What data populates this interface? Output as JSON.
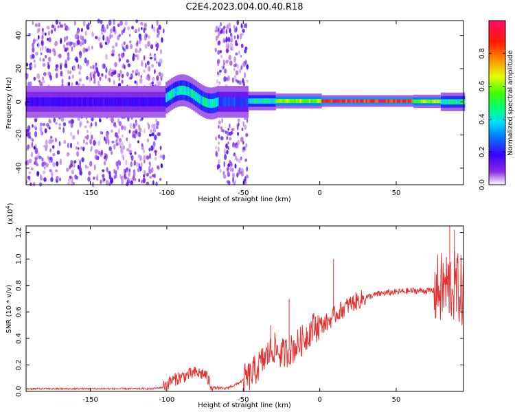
{
  "title": "C2E4.2023.004.00.40.R18",
  "chart_data": [
    {
      "type": "heatmap",
      "name": "spectrogram",
      "xlabel": "Height of straight line (km)",
      "ylabel": "Frequency (Hz)",
      "xlim": [
        -192,
        94
      ],
      "ylim": [
        -50,
        49
      ],
      "xticks": [
        -150,
        -100,
        -50,
        0,
        50
      ],
      "yticks": [
        -40,
        -20,
        0,
        20,
        40
      ],
      "colorbar": {
        "label": "Normalized spectral amplitude",
        "range": [
          0,
          1
        ],
        "ticks": [
          "0.0",
          "0.2",
          "0.4",
          "0.6",
          "0.8"
        ],
        "tick_values": [
          0,
          0.2,
          0.4,
          0.6,
          0.8
        ]
      },
      "regions": [
        {
          "x": [
            -192,
            -102
          ],
          "description": "broadband noise"
        },
        {
          "x": [
            -68,
            -47
          ],
          "description": "broadband noise"
        },
        {
          "x": [
            -100,
            -67
          ],
          "description": "signal band near 5 Hz, amplitude ~0.45"
        },
        {
          "x": [
            -30,
            90
          ],
          "description": "narrow line near 0 Hz, amplitude up to ~0.95"
        }
      ]
    },
    {
      "type": "line",
      "name": "snr",
      "xlabel": "Height of straight line (km)",
      "ylabel": "SNR (10 * v/v)",
      "scale_label": "(x10",
      "scale_exp": "4",
      "scale_close": ")",
      "xlim": [
        -192,
        94
      ],
      "ylim": [
        0,
        1.25
      ],
      "xticks": [
        -150,
        -100,
        -50,
        0,
        50
      ],
      "yticks": [
        "0.0",
        "0.2",
        "0.4",
        "0.6",
        "0.8",
        "1.0",
        "1.2"
      ],
      "ytick_values": [
        0,
        0.2,
        0.4,
        0.6,
        0.8,
        1.0,
        1.2
      ],
      "color": "#e53030",
      "x": [
        -190,
        -150,
        -110,
        -103,
        -97,
        -90,
        -82,
        -75,
        -70,
        -62,
        -55,
        -45,
        -38,
        -30,
        -25,
        -18,
        -10,
        -5,
        0,
        5,
        10,
        20,
        30,
        40,
        50,
        60,
        70,
        76,
        80,
        85,
        90,
        93
      ],
      "y": [
        0.02,
        0.02,
        0.02,
        0.03,
        0.08,
        0.11,
        0.14,
        0.13,
        0.03,
        0.02,
        0.05,
        0.12,
        0.22,
        0.33,
        0.28,
        0.32,
        0.4,
        0.48,
        0.5,
        0.52,
        0.58,
        0.66,
        0.71,
        0.74,
        0.75,
        0.76,
        0.76,
        0.76,
        0.78,
        0.8,
        0.78,
        0.75
      ],
      "spikes": [
        {
          "x": -32,
          "y": 0.5
        },
        {
          "x": -20,
          "y": 0.7
        },
        {
          "x": 9,
          "y": 1.0
        },
        {
          "x": 85,
          "y": 1.25
        },
        {
          "x": 88,
          "y": 1.22
        }
      ]
    }
  ]
}
